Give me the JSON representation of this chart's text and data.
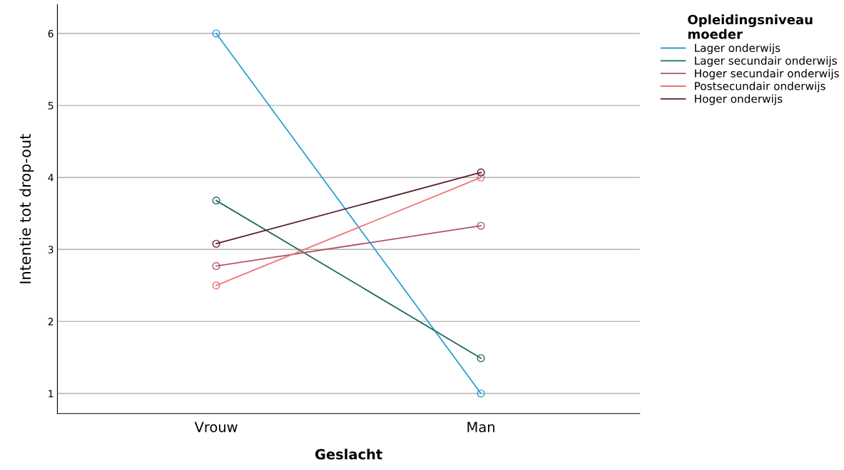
{
  "chart_data": {
    "type": "line",
    "xlabel": "Geslacht",
    "ylabel": "Intentie tot drop-out",
    "legend_title": "Opleidingsniveau\nmoeder",
    "categories": [
      "Vrouw",
      "Man"
    ],
    "series": [
      {
        "name": "Lager onderwijs",
        "color": "#2a9fd6",
        "values": [
          6.0,
          1.0
        ]
      },
      {
        "name": "Lager secundair onderwijs",
        "color": "#1d6b63",
        "values": [
          3.68,
          1.49
        ]
      },
      {
        "name": "Hoger secundair onderwijs",
        "color": "#b0506a",
        "values": [
          2.77,
          3.33
        ]
      },
      {
        "name": "Postsecundair onderwijs",
        "color": "#f07075",
        "values": [
          2.5,
          4.0
        ]
      },
      {
        "name": "Hoger onderwijs",
        "color": "#5a1f2c",
        "values": [
          3.08,
          4.07
        ]
      }
    ],
    "ylim": [
      0.72,
      6.4
    ],
    "yticks": [
      1,
      2,
      3,
      4,
      5,
      6
    ],
    "grid": "y",
    "legend": "top right",
    "marker": "circle",
    "line_style": "solid"
  }
}
